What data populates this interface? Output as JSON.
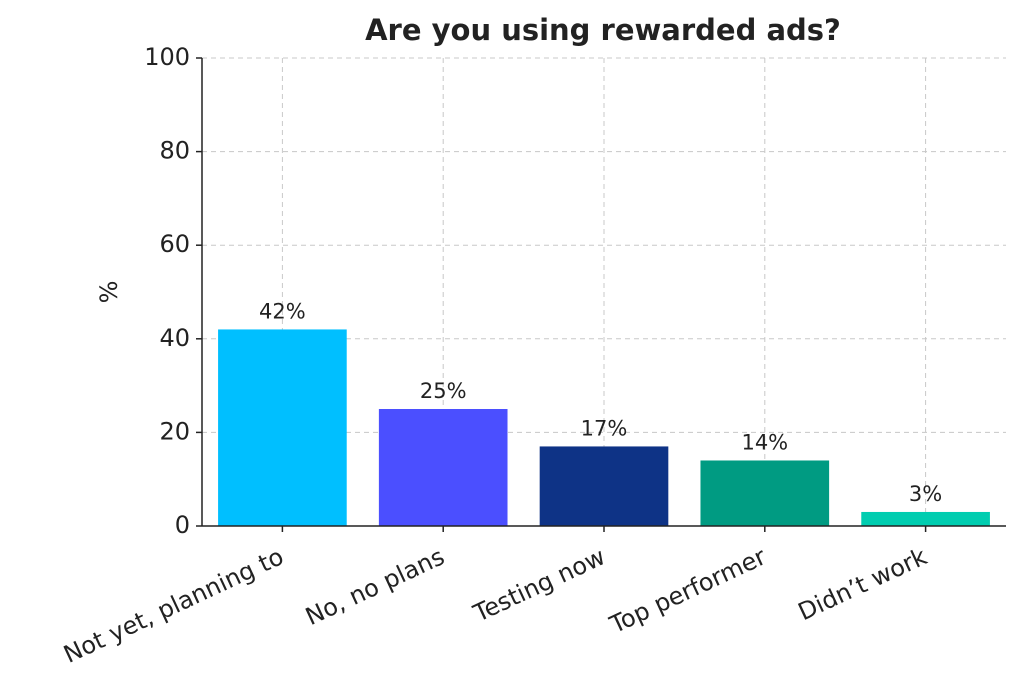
{
  "chart_data": {
    "type": "bar",
    "title": "Are you using rewarded ads?",
    "y_label": "%",
    "categories": [
      "Not yet, planning to",
      "No, no plans",
      "Testing now",
      "Top performer",
      "Didn’t work"
    ],
    "values": [
      42,
      25,
      17,
      14,
      3
    ],
    "value_labels": [
      "42%",
      "25%",
      "17%",
      "14%",
      "3%"
    ],
    "colors": [
      "#00bfff",
      "#4b4fff",
      "#0e3386",
      "#009b82",
      "#00cdb0"
    ],
    "ylim": [
      0,
      100
    ],
    "yticks": [
      0,
      20,
      40,
      60,
      80,
      100
    ],
    "grid": true
  }
}
